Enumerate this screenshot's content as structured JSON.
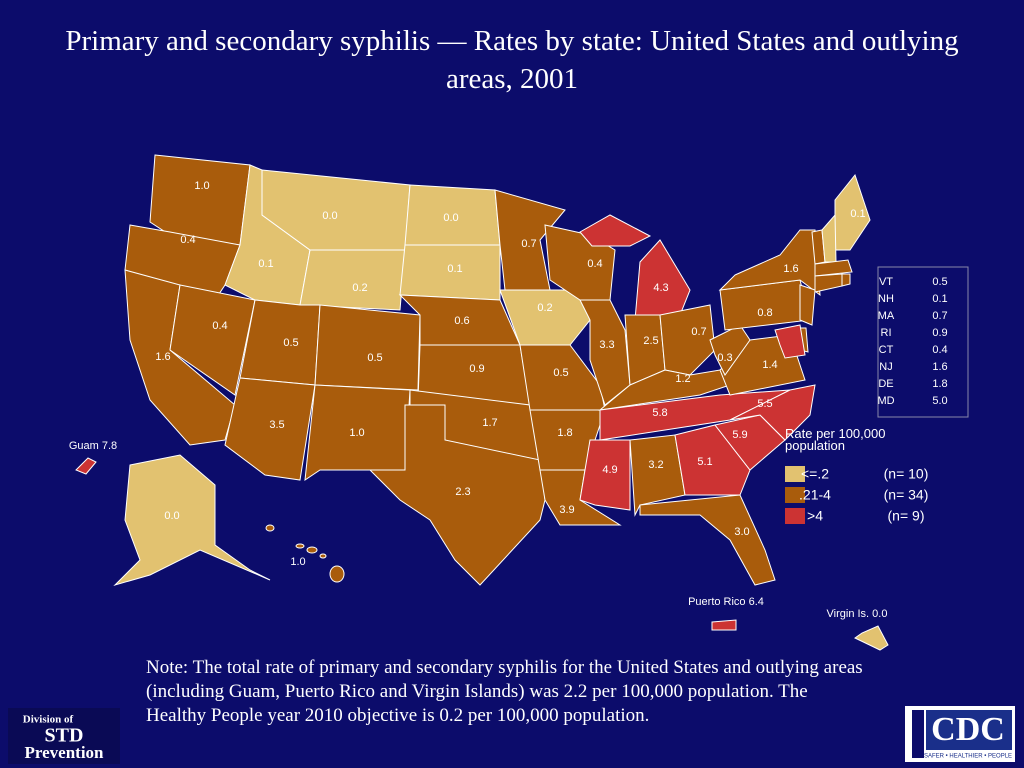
{
  "title": "Primary and secondary syphilis — Rates by state: United States and outlying  areas, 2001",
  "states": [
    {
      "rate": "1.0",
      "color": "#a95c0c"
    },
    {
      "rate": "0.4",
      "color": "#a95c0c"
    },
    {
      "rate": "1.6",
      "color": "#a95c0c"
    },
    {
      "rate": "0.4",
      "color": "#a95c0c"
    },
    {
      "rate": "0.1",
      "color": "#e2c270"
    },
    {
      "rate": "0.0",
      "color": "#e2c270"
    },
    {
      "rate": "0.2",
      "color": "#e2c270"
    },
    {
      "rate": "0.5",
      "color": "#a95c0c"
    },
    {
      "rate": "3.5",
      "color": "#a95c0c"
    },
    {
      "rate": "0.5",
      "color": "#a95c0c"
    },
    {
      "rate": "1.0",
      "color": "#a95c0c"
    },
    {
      "rate": "0.0",
      "color": "#e2c270"
    },
    {
      "rate": "0.1",
      "color": "#e2c270"
    },
    {
      "rate": "0.6",
      "color": "#a95c0c"
    },
    {
      "rate": "0.9",
      "color": "#a95c0c"
    },
    {
      "rate": "1.7",
      "color": "#a95c0c"
    },
    {
      "rate": "2.3",
      "color": "#a95c0c"
    },
    {
      "rate": "0.7",
      "color": "#a95c0c"
    },
    {
      "rate": "0.2",
      "color": "#e2c270"
    },
    {
      "rate": "0.5",
      "color": "#a95c0c"
    },
    {
      "rate": "1.8",
      "color": "#a95c0c"
    },
    {
      "rate": "3.9",
      "color": "#a95c0c"
    },
    {
      "rate": "0.4",
      "color": "#a95c0c"
    },
    {
      "rate": "3.3",
      "color": "#a95c0c"
    },
    {
      "rate": "4.3",
      "color": "#cc3333"
    },
    {
      "rate": "2.5",
      "color": "#a95c0c"
    },
    {
      "rate": "0.7",
      "color": "#a95c0c"
    },
    {
      "rate": "1.2",
      "color": "#a95c0c"
    },
    {
      "rate": "5.8",
      "color": "#cc3333"
    },
    {
      "rate": "4.9",
      "color": "#cc3333"
    },
    {
      "rate": "3.2",
      "color": "#a95c0c"
    },
    {
      "rate": "5.1",
      "color": "#cc3333"
    },
    {
      "rate": "3.0",
      "color": "#a95c0c"
    },
    {
      "rate": "5.9",
      "color": "#cc3333"
    },
    {
      "rate": "5.5",
      "color": "#cc3333"
    },
    {
      "rate": "1.4",
      "color": "#a95c0c"
    },
    {
      "rate": "0.3",
      "color": "#a95c0c"
    },
    {
      "rate": "0.8",
      "color": "#a95c0c"
    },
    {
      "rate": "1.6",
      "color": "#a95c0c"
    },
    {
      "rate": "0.1",
      "color": "#e2c270"
    },
    {
      "rate": "0.0",
      "color": "#e2c270"
    },
    {
      "rate": "1.0",
      "color": "#a95c0c"
    }
  ],
  "table": [
    {
      "state": "VT",
      "rate": "0.5",
      "color": "#a95c0c"
    },
    {
      "state": "NH",
      "rate": "0.1",
      "color": "#e2c270"
    },
    {
      "state": "MA",
      "rate": "0.7",
      "color": "#a95c0c"
    },
    {
      "state": "RI",
      "rate": "0.9",
      "color": "#a95c0c"
    },
    {
      "state": "CT",
      "rate": "0.4",
      "color": "#a95c0c"
    },
    {
      "state": "NJ",
      "rate": "1.6",
      "color": "#a95c0c"
    },
    {
      "state": "DE",
      "rate": "1.8",
      "color": "#a95c0c"
    },
    {
      "state": "MD",
      "rate": "5.0",
      "color": "#cc3333"
    }
  ],
  "territories": [
    {
      "label": "Guam 7.8",
      "color": "#cc3333"
    },
    {
      "label": "Puerto Rico 6.4",
      "color": "#cc3333"
    },
    {
      "label": "Virgin Is. 0.0",
      "color": "#e2c270"
    }
  ],
  "legend": {
    "title": "Rate per 100,000 population",
    "items": [
      {
        "label": "<=.2",
        "count": "(n= 10)",
        "color": "#e2c270"
      },
      {
        "label": ".21-4",
        "count": "(n= 34)",
        "color": "#a95c0c"
      },
      {
        "label": ">4",
        "count": "(n=  9)",
        "color": "#cc3333"
      }
    ]
  },
  "note": "Note: The total rate of primary and secondary syphilis for the United States and outlying areas (including Guam, Puerto Rico and Virgin Islands) was 2.2 per 100,000 population. The Healthy People year 2010 objective is 0.2 per 100,000 population.",
  "logos": {
    "left": [
      "Division of",
      "STD",
      "Prevention"
    ],
    "right": "CDC",
    "tagline": "SAFER • HEALTHIER • PEOPLE"
  }
}
